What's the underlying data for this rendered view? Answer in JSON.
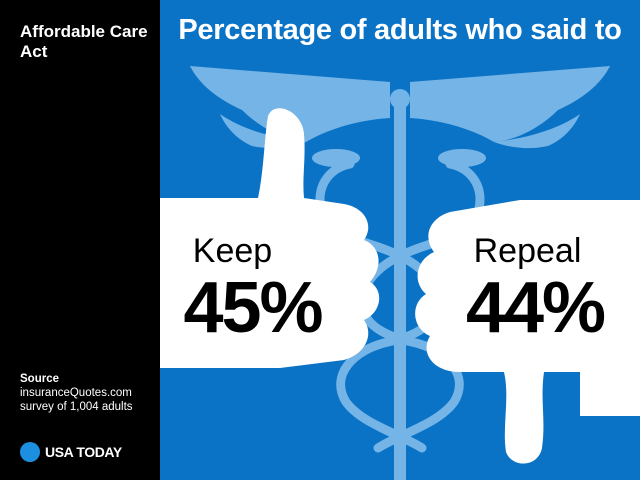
{
  "topic": "Affordable Care Act",
  "headline": "Percentage of adults who said to",
  "source": {
    "label": "Source",
    "line1": "insuranceQuotes.com",
    "line2": "survey of 1,004 adults"
  },
  "brand": {
    "name": "USA TODAY",
    "dot_color": "#1d8fe1"
  },
  "colors": {
    "panel_bg": "#0b73c6",
    "caduceus": "#74b4e6",
    "hand": "#ffffff"
  },
  "icons": [
    "thumbs-up-icon",
    "thumbs-down-icon",
    "caduceus-icon"
  ],
  "chart_data": {
    "type": "bar",
    "categories": [
      "Keep",
      "Repeal"
    ],
    "values": [
      45,
      44
    ],
    "value_labels": [
      "45%",
      "44%"
    ],
    "unit": "%",
    "title": "Percentage of adults who said to"
  }
}
